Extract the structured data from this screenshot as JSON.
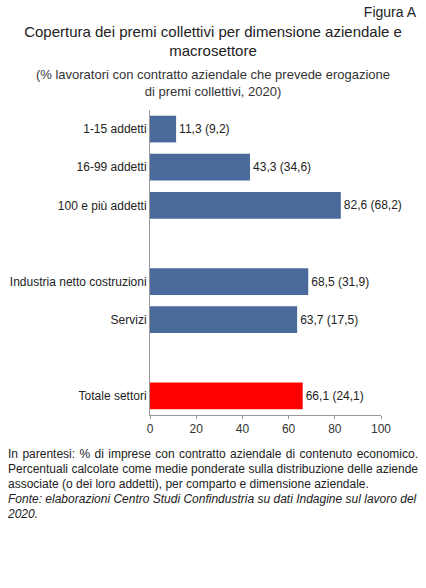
{
  "chart_data": {
    "type": "bar",
    "orientation": "horizontal",
    "figure_label": "Figura A",
    "title": "Copertura dei premi collettivi per dimensione aziendale e macrosettore",
    "subtitle": "(% lavoratori con contratto aziendale che prevede erogazione di premi collettivi, 2020)",
    "categories": [
      "1-15 addetti",
      "16-99 addetti",
      "100 e più addetti",
      null,
      "Industria netto costruzioni",
      "Servizi",
      null,
      "Totale settori"
    ],
    "values": [
      11.3,
      43.3,
      82.6,
      null,
      68.5,
      63.7,
      null,
      66.1
    ],
    "value_labels": [
      "11,3 (9,2)",
      "43,3 (34,6)",
      "82,6 (68,2)",
      null,
      "68,5 (31,9)",
      "63,7 (17,5)",
      null,
      "66,1 (24,1)"
    ],
    "colors": [
      "#4a6a9c",
      "#4a6a9c",
      "#4a6a9c",
      "#4a6a9c",
      "#4a6a9c",
      "#4a6a9c",
      "#4a6a9c",
      "#ff0000"
    ],
    "data_labels": true,
    "xlim": [
      0,
      100
    ],
    "xticks": [
      0,
      20,
      40,
      60,
      80,
      100
    ],
    "grid": false,
    "notes": "In parentesi: % di imprese con contratto aziendale di contenuto economico. Percentuali calcolate come medie ponderate sulla distribuzione delle aziende associate (o dei loro addetti), per comparto e dimensione aziendale.",
    "source": "Fonte: elaborazioni Centro Studi Confindustria su dati Indagine sul lavoro del 2020."
  }
}
